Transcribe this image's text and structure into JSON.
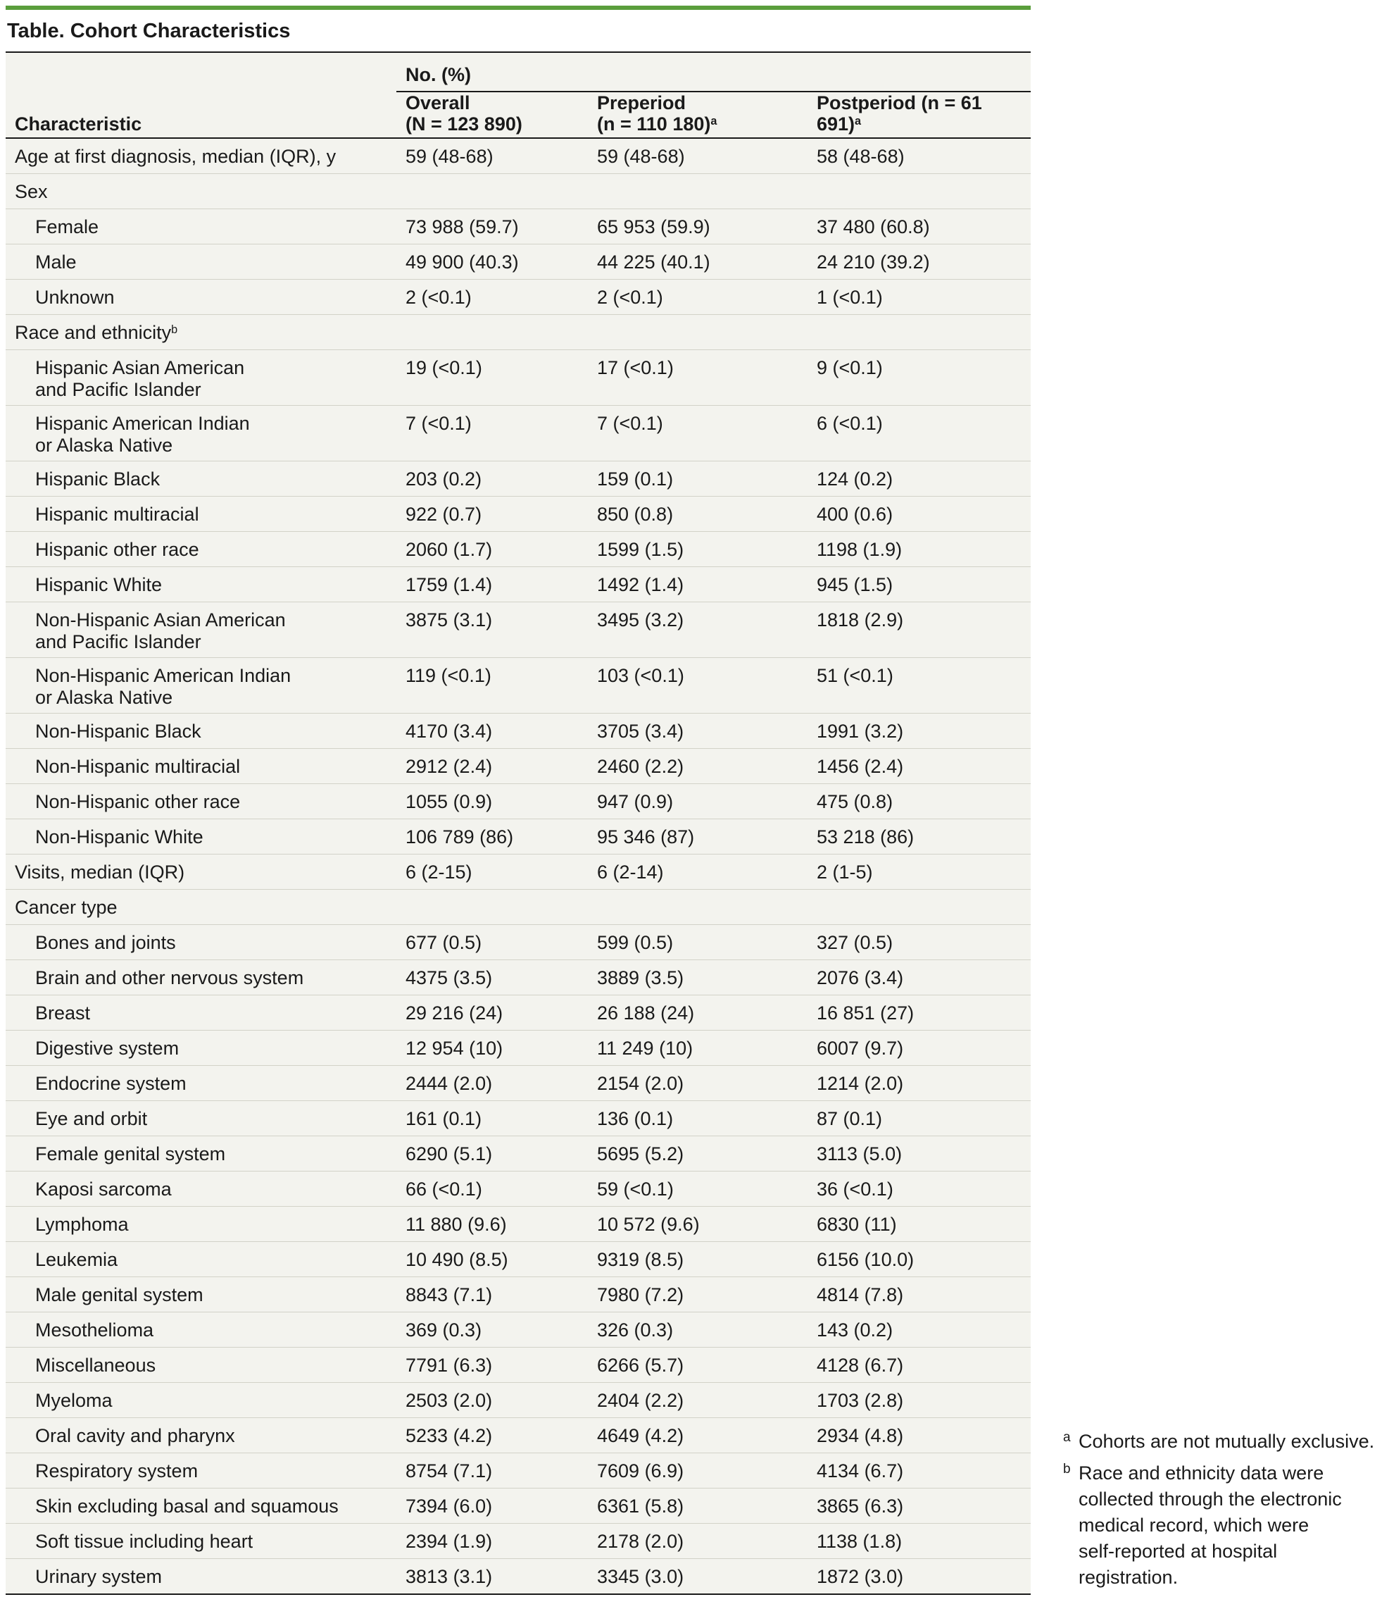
{
  "title": "Table. Cohort Characteristics",
  "header": {
    "group_label": "No. (%)",
    "characteristic": "Characteristic",
    "overall_line1": "Overall",
    "overall_line2": "(N = 123 890)",
    "pre_line1": "Preperiod",
    "pre_line2": "(n = 110 180)",
    "pre_sup": "a",
    "post": "Postperiod (n = 61 691)",
    "post_sup": "a"
  },
  "rows": [
    {
      "label": "Age at first diagnosis, median (IQR), y",
      "overall": "59 (48-68)",
      "pre": "59 (48-68)",
      "post": "58 (48-68)"
    },
    {
      "label": "Sex",
      "overall": "",
      "pre": "",
      "post": ""
    },
    {
      "label": "Female",
      "overall": "73 988 (59.7)",
      "pre": "65 953 (59.9)",
      "post": "37 480 (60.8)"
    },
    {
      "label": "Male",
      "overall": "49 900 (40.3)",
      "pre": "44 225 (40.1)",
      "post": "24 210 (39.2)"
    },
    {
      "label": "Unknown",
      "overall": "2 (<0.1)",
      "pre": "2 (<0.1)",
      "post": "1 (<0.1)"
    },
    {
      "label": "Race and ethnicity",
      "sup": "b",
      "overall": "",
      "pre": "",
      "post": ""
    },
    {
      "label_line1": "Hispanic Asian American",
      "label_line2": "and Pacific Islander",
      "overall": "19 (<0.1)",
      "pre": "17 (<0.1)",
      "post": "9 (<0.1)"
    },
    {
      "label_line1": "Hispanic American Indian",
      "label_line2": "or Alaska Native",
      "overall": "7 (<0.1)",
      "pre": "7 (<0.1)",
      "post": "6 (<0.1)"
    },
    {
      "label": "Hispanic Black",
      "overall": "203 (0.2)",
      "pre": "159 (0.1)",
      "post": "124 (0.2)"
    },
    {
      "label": "Hispanic multiracial",
      "overall": "922 (0.7)",
      "pre": "850 (0.8)",
      "post": "400 (0.6)"
    },
    {
      "label": "Hispanic other race",
      "overall": "2060 (1.7)",
      "pre": "1599 (1.5)",
      "post": "1198 (1.9)"
    },
    {
      "label": "Hispanic White",
      "overall": "1759 (1.4)",
      "pre": "1492 (1.4)",
      "post": "945 (1.5)"
    },
    {
      "label_line1": "Non-Hispanic Asian American",
      "label_line2": "and Pacific Islander",
      "overall": "3875 (3.1)",
      "pre": "3495 (3.2)",
      "post": "1818 (2.9)"
    },
    {
      "label_line1": "Non-Hispanic American Indian",
      "label_line2": "or Alaska Native",
      "overall": "119 (<0.1)",
      "pre": "103 (<0.1)",
      "post": "51 (<0.1)"
    },
    {
      "label": "Non-Hispanic Black",
      "overall": "4170 (3.4)",
      "pre": "3705 (3.4)",
      "post": "1991 (3.2)"
    },
    {
      "label": "Non-Hispanic multiracial",
      "overall": "2912 (2.4)",
      "pre": "2460 (2.2)",
      "post": "1456 (2.4)"
    },
    {
      "label": "Non-Hispanic other race",
      "overall": "1055 (0.9)",
      "pre": "947 (0.9)",
      "post": "475 (0.8)"
    },
    {
      "label": "Non-Hispanic White",
      "overall": "106 789 (86)",
      "pre": "95 346 (87)",
      "post": "53 218 (86)"
    },
    {
      "label": "Visits, median (IQR)",
      "overall": "6 (2-15)",
      "pre": "6 (2-14)",
      "post": "2 (1-5)"
    },
    {
      "label": "Cancer type",
      "overall": "",
      "pre": "",
      "post": ""
    },
    {
      "label": "Bones and joints",
      "overall": "677 (0.5)",
      "pre": "599 (0.5)",
      "post": "327 (0.5)"
    },
    {
      "label": "Brain and other nervous system",
      "overall": "4375 (3.5)",
      "pre": "3889 (3.5)",
      "post": "2076 (3.4)"
    },
    {
      "label": "Breast",
      "overall": "29 216 (24)",
      "pre": "26 188 (24)",
      "post": "16 851 (27)"
    },
    {
      "label": "Digestive system",
      "overall": "12 954 (10)",
      "pre": "11 249 (10)",
      "post": "6007 (9.7)"
    },
    {
      "label": "Endocrine system",
      "overall": "2444 (2.0)",
      "pre": "2154 (2.0)",
      "post": "1214 (2.0)"
    },
    {
      "label": "Eye and orbit",
      "overall": "161 (0.1)",
      "pre": "136 (0.1)",
      "post": "87 (0.1)"
    },
    {
      "label": "Female genital system",
      "overall": "6290 (5.1)",
      "pre": "5695 (5.2)",
      "post": "3113 (5.0)"
    },
    {
      "label": "Kaposi sarcoma",
      "overall": "66 (<0.1)",
      "pre": "59 (<0.1)",
      "post": "36 (<0.1)"
    },
    {
      "label": "Lymphoma",
      "overall": "11 880 (9.6)",
      "pre": "10 572 (9.6)",
      "post": "6830 (11)"
    },
    {
      "label": "Leukemia",
      "overall": "10 490 (8.5)",
      "pre": "9319 (8.5)",
      "post": "6156 (10.0)"
    },
    {
      "label": "Male genital system",
      "overall": "8843 (7.1)",
      "pre": "7980 (7.2)",
      "post": "4814 (7.8)"
    },
    {
      "label": "Mesothelioma",
      "overall": "369 (0.3)",
      "pre": "326 (0.3)",
      "post": "143 (0.2)"
    },
    {
      "label": "Miscellaneous",
      "overall": "7791 (6.3)",
      "pre": "6266 (5.7)",
      "post": "4128 (6.7)"
    },
    {
      "label": "Myeloma",
      "overall": "2503 (2.0)",
      "pre": "2404 (2.2)",
      "post": "1703 (2.8)"
    },
    {
      "label": "Oral cavity and pharynx",
      "overall": "5233 (4.2)",
      "pre": "4649 (4.2)",
      "post": "2934 (4.8)"
    },
    {
      "label": "Respiratory system",
      "overall": "8754 (7.1)",
      "pre": "7609 (6.9)",
      "post": "4134 (6.7)"
    },
    {
      "label": "Skin excluding basal and squamous",
      "overall": "7394 (6.0)",
      "pre": "6361 (5.8)",
      "post": "3865 (6.3)"
    },
    {
      "label": "Soft tissue including heart",
      "overall": "2394 (1.9)",
      "pre": "2178 (2.0)",
      "post": "1138 (1.8)"
    },
    {
      "label": "Urinary system",
      "overall": "3813 (3.1)",
      "pre": "3345 (3.0)",
      "post": "1872 (3.0)"
    }
  ],
  "footnotes": {
    "a_mark": "a",
    "a_text": "Cohorts are not mutually exclusive.",
    "b_mark": "b",
    "b_line1": "Race and ethnicity data were",
    "b_line2": "collected through the electronic",
    "b_line3": "medical record, which were",
    "b_line4": "self-reported at hospital",
    "b_line5": "registration."
  }
}
